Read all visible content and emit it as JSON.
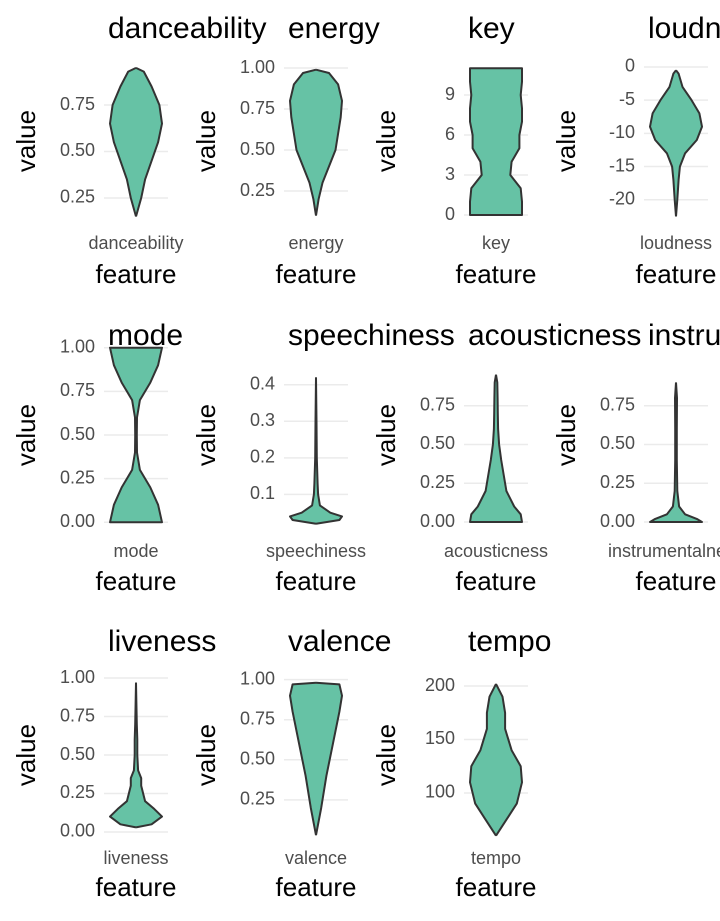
{
  "chart_data": [
    {
      "type": "violin",
      "title": "danceability",
      "categories": [
        "danceability"
      ],
      "xlabel": "feature",
      "ylabel": "value",
      "color": "#66c2a5",
      "grid": true,
      "ylim": [
        0.126,
        0.987
      ],
      "yticks": [
        {
          "value": 0.25,
          "label": "0.25"
        },
        {
          "value": 0.5,
          "label": "0.50"
        },
        {
          "value": 0.75,
          "label": "0.75"
        }
      ],
      "violin": {
        "y": [
          0.15,
          0.25,
          0.35,
          0.45,
          0.55,
          0.65,
          0.75,
          0.85,
          0.93,
          0.95
        ],
        "width": [
          0,
          0.2,
          0.35,
          0.6,
          0.85,
          1,
          0.9,
          0.6,
          0.3,
          0
        ]
      }
    },
    {
      "type": "violin",
      "title": "energy",
      "categories": [
        "energy"
      ],
      "xlabel": "feature",
      "ylabel": "value",
      "color": "#66c2a5",
      "grid": true,
      "ylim": [
        0.067,
        1.043
      ],
      "yticks": [
        {
          "value": 0.25,
          "label": "0.25"
        },
        {
          "value": 0.5,
          "label": "0.50"
        },
        {
          "value": 0.75,
          "label": "0.75"
        },
        {
          "value": 1,
          "label": "1.00"
        }
      ],
      "violin": {
        "y": [
          0.1,
          0.2,
          0.3,
          0.4,
          0.5,
          0.6,
          0.7,
          0.8,
          0.9,
          0.97,
          0.99
        ],
        "width": [
          0,
          0.1,
          0.25,
          0.5,
          0.75,
          0.85,
          0.95,
          1,
          0.85,
          0.5,
          0
        ]
      }
    },
    {
      "type": "violin",
      "title": "key",
      "categories": [
        "key"
      ],
      "xlabel": "feature",
      "ylabel": "value",
      "color": "#66c2a5",
      "grid": true,
      "ylim": [
        -0.45,
        11.55
      ],
      "yticks": [
        0,
        3,
        6,
        9
      ],
      "violin": {
        "y": [
          0,
          0,
          1,
          2,
          3,
          4,
          5,
          6,
          7,
          8,
          9,
          10,
          11,
          11
        ],
        "width": [
          0,
          1,
          1,
          0.95,
          0.55,
          0.6,
          0.9,
          0.9,
          1,
          1,
          0.95,
          1,
          1,
          0
        ]
      }
    },
    {
      "type": "violin",
      "title": "loudness",
      "categories": [
        "loudness"
      ],
      "xlabel": "feature",
      "ylabel": "value",
      "color": "#66c2a5",
      "grid": true,
      "ylim": [
        -23.2,
        0.9
      ],
      "yticks": [
        -20,
        -15,
        -10,
        -5,
        0
      ],
      "violin": {
        "y": [
          -22.5,
          -20,
          -17,
          -15,
          -13,
          -11,
          -9,
          -7,
          -5,
          -3,
          -1,
          -0.5
        ],
        "width": [
          0,
          0.05,
          0.1,
          0.15,
          0.35,
          0.8,
          1,
          0.9,
          0.6,
          0.25,
          0.1,
          0
        ]
      }
    },
    {
      "type": "violin",
      "title": "mode",
      "categories": [
        "mode"
      ],
      "xlabel": "feature",
      "ylabel": "value",
      "color": "#66c2a5",
      "grid": true,
      "ylim": [
        -0.05,
        1.05
      ],
      "yticks": [
        {
          "value": 0,
          "label": "0.00"
        },
        {
          "value": 0.25,
          "label": "0.25"
        },
        {
          "value": 0.5,
          "label": "0.50"
        },
        {
          "value": 0.75,
          "label": "0.75"
        },
        {
          "value": 1,
          "label": "1.00"
        }
      ],
      "violin": {
        "y": [
          0,
          0,
          0.1,
          0.2,
          0.3,
          0.4,
          0.5,
          0.6,
          0.7,
          0.8,
          0.9,
          1,
          1
        ],
        "width": [
          0,
          1,
          0.85,
          0.55,
          0.15,
          0.04,
          0.03,
          0.04,
          0.15,
          0.55,
          0.85,
          1,
          0
        ]
      }
    },
    {
      "type": "violin",
      "title": "speechiness",
      "categories": [
        "speechiness"
      ],
      "xlabel": "feature",
      "ylabel": "value",
      "color": "#66c2a5",
      "grid": true,
      "ylim": [
        0,
        0.525
      ],
      "yticks": [
        0.1,
        0.2,
        0.3,
        0.4
      ],
      "violin": {
        "y": [
          0.02,
          0.03,
          0.04,
          0.05,
          0.07,
          0.1,
          0.13,
          0.2,
          0.3,
          0.42
        ],
        "width": [
          0,
          0.9,
          1,
          0.55,
          0.15,
          0.08,
          0.06,
          0.03,
          0.02,
          0
        ]
      }
    },
    {
      "type": "violin",
      "title": "acousticness",
      "categories": [
        "acousticness"
      ],
      "xlabel": "feature",
      "ylabel": "value",
      "color": "#66c2a5",
      "grid": true,
      "ylim": [
        -0.058,
        1.18
      ],
      "yticks": [
        {
          "value": 0,
          "label": "0.00"
        },
        {
          "value": 0.25,
          "label": "0.25"
        },
        {
          "value": 0.5,
          "label": "0.50"
        },
        {
          "value": 0.75,
          "label": "0.75"
        }
      ],
      "violin": {
        "y": [
          0,
          0,
          0.05,
          0.1,
          0.2,
          0.3,
          0.4,
          0.5,
          0.6,
          0.7,
          0.8,
          0.9,
          0.95
        ],
        "width": [
          0,
          1,
          0.95,
          0.7,
          0.4,
          0.3,
          0.2,
          0.12,
          0.08,
          0.07,
          0.06,
          0.05,
          0
        ]
      }
    },
    {
      "type": "violin",
      "title": "instrumentalness",
      "categories": [
        "instrumentalness"
      ],
      "xlabel": "feature",
      "ylabel": "value",
      "color": "#66c2a5",
      "grid": true,
      "ylim": [
        -0.058,
        1.18
      ],
      "yticks": [
        {
          "value": 0,
          "label": "0.00"
        },
        {
          "value": 0.25,
          "label": "0.25"
        },
        {
          "value": 0.5,
          "label": "0.50"
        },
        {
          "value": 0.75,
          "label": "0.75"
        }
      ],
      "violin": {
        "y": [
          0,
          0,
          0.02,
          0.05,
          0.1,
          0.2,
          0.4,
          0.6,
          0.8,
          0.9
        ],
        "width": [
          0,
          1,
          0.8,
          0.35,
          0.12,
          0.05,
          0.03,
          0.03,
          0.04,
          0
        ]
      }
    },
    {
      "type": "violin",
      "title": "liveness",
      "categories": [
        "liveness"
      ],
      "xlabel": "feature",
      "ylabel": "value",
      "color": "#66c2a5",
      "grid": true,
      "ylim": [
        -0.052,
        1.052
      ],
      "yticks": [
        {
          "value": 0,
          "label": "0.00"
        },
        {
          "value": 0.25,
          "label": "0.25"
        },
        {
          "value": 0.5,
          "label": "0.50"
        },
        {
          "value": 0.75,
          "label": "0.75"
        },
        {
          "value": 1,
          "label": "1.00"
        }
      ],
      "violin": {
        "y": [
          0.03,
          0.05,
          0.1,
          0.15,
          0.2,
          0.3,
          0.35,
          0.4,
          0.5,
          0.6,
          0.7,
          0.8,
          0.97
        ],
        "width": [
          0,
          0.6,
          1,
          0.7,
          0.35,
          0.2,
          0.2,
          0.08,
          0.05,
          0.05,
          0.03,
          0.02,
          0
        ]
      }
    },
    {
      "type": "violin",
      "title": "valence",
      "categories": [
        "valence"
      ],
      "xlabel": "feature",
      "ylabel": "value",
      "color": "#66c2a5",
      "grid": true,
      "ylim": [
        0,
        1.06
      ],
      "yticks": [
        {
          "value": 0.25,
          "label": "0.25"
        },
        {
          "value": 0.5,
          "label": "0.50"
        },
        {
          "value": 0.75,
          "label": "0.75"
        },
        {
          "value": 1,
          "label": "1.00"
        }
      ],
      "violin": {
        "y": [
          0.03,
          0.2,
          0.4,
          0.6,
          0.8,
          0.9,
          0.97,
          0.98
        ],
        "width": [
          0,
          0.2,
          0.4,
          0.65,
          0.9,
          1,
          0.9,
          0
        ]
      }
    },
    {
      "type": "violin",
      "title": "tempo",
      "categories": [
        "tempo"
      ],
      "xlabel": "feature",
      "ylabel": "value",
      "color": "#66c2a5",
      "grid": true,
      "ylim": [
        56,
        215
      ],
      "yticks": [
        100,
        150,
        200
      ],
      "violin": {
        "y": [
          60,
          75,
          90,
          110,
          125,
          140,
          160,
          175,
          190,
          202
        ],
        "width": [
          0,
          0.4,
          0.8,
          1,
          0.95,
          0.6,
          0.35,
          0.35,
          0.25,
          0
        ]
      }
    }
  ]
}
